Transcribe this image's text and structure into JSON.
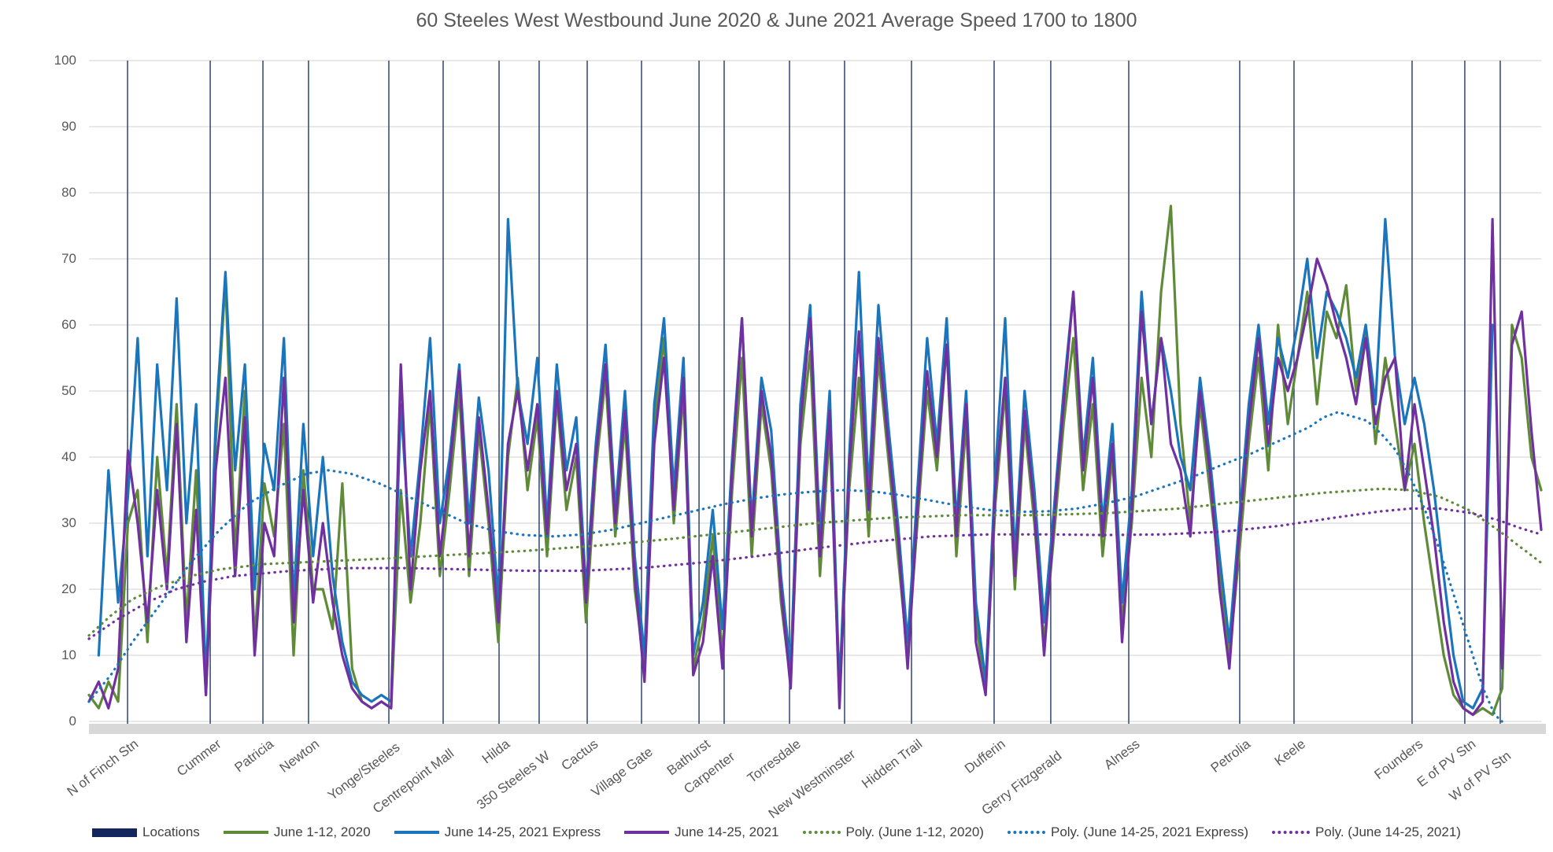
{
  "chart_data": {
    "type": "line",
    "title": "60 Steeles West Westbound June 2020 & June 2021 Average Speed 1700 to 1800",
    "xlabel": "",
    "ylabel": "",
    "ylim": [
      0,
      100
    ],
    "yticks": [
      0,
      10,
      20,
      30,
      40,
      50,
      60,
      70,
      80,
      90,
      100
    ],
    "grid": "horizontal-and-location-lines",
    "legend_position": "bottom",
    "colors": {
      "green": "#5f8b39",
      "blue": "#1b75bc",
      "purple": "#7030a0",
      "locations_navy": "#1f3864",
      "legend_swatch_navy": "#13265e",
      "gridline": "#d9d9d9",
      "axis_band": "#d8d8d8",
      "text": "#595959"
    },
    "locations": [
      {
        "label": "N of Finch Stn",
        "pct": 2.66,
        "dy": 0
      },
      {
        "label": "Cummer",
        "pct": 8.35,
        "dy": 0
      },
      {
        "label": "Patricia",
        "pct": 11.98,
        "dy": 0
      },
      {
        "label": "Newton",
        "pct": 15.12,
        "dy": 0
      },
      {
        "label": "Yonge/Steeles",
        "pct": 20.65,
        "dy": 4
      },
      {
        "label": "Centrepoint Mall",
        "pct": 24.39,
        "dy": 12
      },
      {
        "label": "Hilda",
        "pct": 28.24,
        "dy": 0
      },
      {
        "label": "350 Steeles W",
        "pct": 31.0,
        "dy": 15
      },
      {
        "label": "Cactus",
        "pct": 34.31,
        "dy": 0
      },
      {
        "label": "Village Gate",
        "pct": 38.05,
        "dy": 10
      },
      {
        "label": "Bathurst",
        "pct": 42.01,
        "dy": 0
      },
      {
        "label": "Carpenter",
        "pct": 43.74,
        "dy": 16
      },
      {
        "label": "Torresdale",
        "pct": 48.24,
        "dy": 0
      },
      {
        "label": "New Westminster",
        "pct": 52.03,
        "dy": 13
      },
      {
        "label": "Hidden Trail",
        "pct": 56.64,
        "dy": 0
      },
      {
        "label": "Dufferin",
        "pct": 62.33,
        "dy": 0
      },
      {
        "label": "Gerry Fitzgerald",
        "pct": 66.23,
        "dy": 15
      },
      {
        "label": "Alness",
        "pct": 71.6,
        "dy": 0
      },
      {
        "label": "Petrolia",
        "pct": 79.24,
        "dy": 0
      },
      {
        "label": "Keele",
        "pct": 82.98,
        "dy": 0
      },
      {
        "label": "Founders",
        "pct": 91.11,
        "dy": 0
      },
      {
        "label": "E of PV Stn",
        "pct": 94.74,
        "dy": 0
      },
      {
        "label": "W of PV Stn",
        "pct": 97.18,
        "dy": 15
      }
    ],
    "x_start_pct": 0,
    "x_step_pct": 0.67114,
    "series": [
      {
        "name": "June 1-12, 2020",
        "style": "solid",
        "color": "#5f8b39",
        "values": [
          4,
          2,
          6,
          3,
          30,
          35,
          12,
          40,
          22,
          48,
          15,
          38,
          4,
          42,
          67,
          25,
          50,
          12,
          36,
          28,
          45,
          10,
          38,
          20,
          20,
          14,
          36,
          8,
          3,
          2,
          3,
          2,
          35,
          18,
          30,
          48,
          22,
          35,
          50,
          22,
          44,
          30,
          12,
          40,
          52,
          35,
          46,
          25,
          49,
          32,
          40,
          15,
          38,
          52,
          28,
          45,
          20,
          8,
          45,
          58,
          30,
          50,
          8,
          15,
          28,
          10,
          35,
          55,
          25,
          48,
          38,
          18,
          6,
          42,
          56,
          22,
          44,
          4,
          35,
          52,
          28,
          55,
          40,
          25,
          10,
          30,
          50,
          38,
          57,
          25,
          45,
          15,
          5,
          33,
          50,
          20,
          45,
          30,
          12,
          28,
          45,
          58,
          35,
          48,
          25,
          40,
          15,
          30,
          52,
          40,
          65,
          78,
          45,
          30,
          48,
          35,
          22,
          10,
          25,
          42,
          55,
          38,
          60,
          45,
          55,
          65,
          48,
          62,
          58,
          66,
          50,
          60,
          42,
          55,
          45,
          35,
          42,
          30,
          20,
          10,
          4,
          2,
          1,
          2,
          1,
          5,
          60,
          55,
          40,
          35
        ]
      },
      {
        "name": "June 14-25, 2021 Express",
        "style": "solid",
        "color": "#1b75bc",
        "values": [
          null,
          10,
          38,
          18,
          34,
          58,
          25,
          54,
          35,
          64,
          30,
          48,
          6,
          45,
          68,
          38,
          54,
          20,
          42,
          35,
          58,
          18,
          45,
          25,
          40,
          22,
          12,
          6,
          4,
          3,
          4,
          3,
          48,
          25,
          40,
          58,
          30,
          40,
          54,
          30,
          49,
          38,
          18,
          76,
          50,
          42,
          55,
          30,
          54,
          38,
          46,
          20,
          42,
          57,
          32,
          50,
          25,
          10,
          48,
          61,
          35,
          55,
          10,
          18,
          32,
          14,
          40,
          61,
          30,
          52,
          44,
          22,
          8,
          48,
          63,
          28,
          50,
          5,
          40,
          68,
          35,
          63,
          45,
          30,
          12,
          35,
          58,
          42,
          61,
          30,
          50,
          18,
          6,
          38,
          61,
          25,
          50,
          35,
          15,
          32,
          50,
          65,
          40,
          55,
          30,
          45,
          18,
          35,
          65,
          45,
          58,
          50,
          40,
          35,
          52,
          40,
          25,
          12,
          30,
          48,
          60,
          45,
          58,
          52,
          60,
          70,
          55,
          65,
          62,
          58,
          52,
          60,
          48,
          76,
          55,
          45,
          52,
          45,
          35,
          22,
          10,
          3,
          2,
          5,
          60,
          null,
          null,
          null,
          null,
          null
        ]
      },
      {
        "name": "June 14-25, 2021",
        "style": "solid",
        "color": "#7030a0",
        "values": [
          3,
          6,
          2,
          8,
          41,
          30,
          15,
          35,
          20,
          45,
          12,
          32,
          4,
          38,
          52,
          22,
          46,
          10,
          30,
          25,
          52,
          15,
          35,
          18,
          30,
          18,
          10,
          5,
          3,
          2,
          3,
          2,
          54,
          20,
          38,
          50,
          25,
          38,
          53,
          25,
          46,
          32,
          15,
          42,
          50,
          38,
          48,
          28,
          50,
          35,
          42,
          18,
          40,
          54,
          30,
          47,
          22,
          6,
          42,
          55,
          32,
          52,
          7,
          12,
          25,
          8,
          38,
          61,
          28,
          50,
          40,
          20,
          5,
          45,
          61,
          25,
          47,
          2,
          38,
          59,
          32,
          58,
          42,
          28,
          8,
          32,
          53,
          40,
          57,
          28,
          48,
          12,
          4,
          35,
          52,
          22,
          47,
          32,
          10,
          30,
          48,
          65,
          38,
          52,
          28,
          42,
          12,
          32,
          62,
          45,
          58,
          42,
          38,
          28,
          50,
          38,
          20,
          8,
          28,
          45,
          58,
          42,
          55,
          50,
          55,
          62,
          70,
          66,
          60,
          55,
          48,
          58,
          45,
          52,
          55,
          35,
          48,
          38,
          28,
          15,
          6,
          2,
          1,
          3,
          76,
          8,
          57,
          62,
          44,
          29
        ]
      },
      {
        "name": "Poly. (June 1-12, 2020)",
        "style": "dotted",
        "color": "#5f8b39",
        "points": [
          [
            0,
            13
          ],
          [
            1.5,
            16
          ],
          [
            3,
            18.5
          ],
          [
            5,
            20.5
          ],
          [
            7,
            22
          ],
          [
            9,
            23
          ],
          [
            12,
            23.8
          ],
          [
            16,
            24.2
          ],
          [
            20,
            24.6
          ],
          [
            25,
            25.2
          ],
          [
            30,
            25.8
          ],
          [
            35,
            26.6
          ],
          [
            40,
            27.6
          ],
          [
            45,
            28.8
          ],
          [
            50,
            30
          ],
          [
            55,
            30.8
          ],
          [
            60,
            31.2
          ],
          [
            65,
            31.2
          ],
          [
            70,
            31.5
          ],
          [
            75,
            32.2
          ],
          [
            80,
            33.4
          ],
          [
            85,
            34.6
          ],
          [
            89,
            35.2
          ],
          [
            91,
            35
          ],
          [
            93,
            34
          ],
          [
            95,
            32
          ],
          [
            97,
            29
          ],
          [
            98.5,
            26.5
          ],
          [
            100,
            24
          ]
        ]
      },
      {
        "name": "Poly. (June 14-25, 2021 Express)",
        "style": "dotted",
        "color": "#1b75bc",
        "points": [
          [
            0,
            3
          ],
          [
            1.5,
            7
          ],
          [
            3,
            12
          ],
          [
            5,
            18
          ],
          [
            7,
            24
          ],
          [
            9,
            29
          ],
          [
            11,
            33
          ],
          [
            13,
            35.5
          ],
          [
            15,
            37.5
          ],
          [
            16.5,
            38
          ],
          [
            18,
            37.5
          ],
          [
            20,
            36
          ],
          [
            22,
            34
          ],
          [
            24,
            32
          ],
          [
            26,
            30
          ],
          [
            28,
            28.8
          ],
          [
            30,
            28.2
          ],
          [
            32,
            28
          ],
          [
            34,
            28.3
          ],
          [
            36,
            29
          ],
          [
            38,
            30
          ],
          [
            40,
            31
          ],
          [
            42,
            32
          ],
          [
            44,
            33
          ],
          [
            46,
            33.8
          ],
          [
            48,
            34.4
          ],
          [
            50,
            34.8
          ],
          [
            52,
            35
          ],
          [
            54,
            34.8
          ],
          [
            56,
            34.2
          ],
          [
            58,
            33.4
          ],
          [
            60,
            32.6
          ],
          [
            62,
            32
          ],
          [
            64,
            31.7
          ],
          [
            66,
            31.8
          ],
          [
            68,
            32.2
          ],
          [
            70,
            33
          ],
          [
            72,
            34
          ],
          [
            74,
            35.5
          ],
          [
            76,
            37
          ],
          [
            78,
            38.8
          ],
          [
            80,
            40.5
          ],
          [
            82,
            42.5
          ],
          [
            84,
            44.5
          ],
          [
            85,
            46
          ],
          [
            86,
            46.8
          ],
          [
            88,
            45.5
          ],
          [
            89,
            43.5
          ],
          [
            90,
            41
          ],
          [
            91,
            37
          ],
          [
            92,
            32
          ],
          [
            93,
            26
          ],
          [
            94,
            19
          ],
          [
            95,
            12
          ],
          [
            96,
            5
          ],
          [
            96.8,
            1
          ],
          [
            97.3,
            0
          ]
        ]
      },
      {
        "name": "Poly. (June 14-25, 2021)",
        "style": "dotted",
        "color": "#7030a0",
        "points": [
          [
            0,
            12.5
          ],
          [
            2,
            15.5
          ],
          [
            4,
            18
          ],
          [
            6,
            20
          ],
          [
            8,
            21.2
          ],
          [
            10,
            22
          ],
          [
            14,
            22.8
          ],
          [
            18,
            23.2
          ],
          [
            22,
            23.2
          ],
          [
            26,
            23
          ],
          [
            30,
            22.8
          ],
          [
            34,
            22.8
          ],
          [
            38,
            23.2
          ],
          [
            42,
            24
          ],
          [
            46,
            25
          ],
          [
            50,
            26.2
          ],
          [
            54,
            27.2
          ],
          [
            58,
            28
          ],
          [
            62,
            28.3
          ],
          [
            66,
            28.3
          ],
          [
            70,
            28.2
          ],
          [
            74,
            28.3
          ],
          [
            78,
            28.7
          ],
          [
            82,
            29.6
          ],
          [
            86,
            30.9
          ],
          [
            89,
            31.8
          ],
          [
            91,
            32.2
          ],
          [
            93,
            32.2
          ],
          [
            95,
            31.6
          ],
          [
            97,
            30.5
          ],
          [
            98.5,
            29.3
          ],
          [
            100,
            28.3
          ]
        ]
      }
    ],
    "legend": [
      {
        "label": "Locations",
        "swatch": "bar",
        "color": "#13265e"
      },
      {
        "label": "June 1-12, 2020",
        "swatch": "line",
        "color": "#5f8b39"
      },
      {
        "label": "June 14-25, 2021 Express",
        "swatch": "line",
        "color": "#1b75bc"
      },
      {
        "label": "June 14-25, 2021",
        "swatch": "line",
        "color": "#7030a0"
      },
      {
        "label": "Poly. (June 1-12, 2020)",
        "swatch": "dotted",
        "color": "#5f8b39"
      },
      {
        "label": "Poly. (June 14-25, 2021 Express)",
        "swatch": "dotted",
        "color": "#1b75bc"
      },
      {
        "label": "Poly. (June 14-25, 2021)",
        "swatch": "dotted",
        "color": "#7030a0"
      }
    ]
  }
}
